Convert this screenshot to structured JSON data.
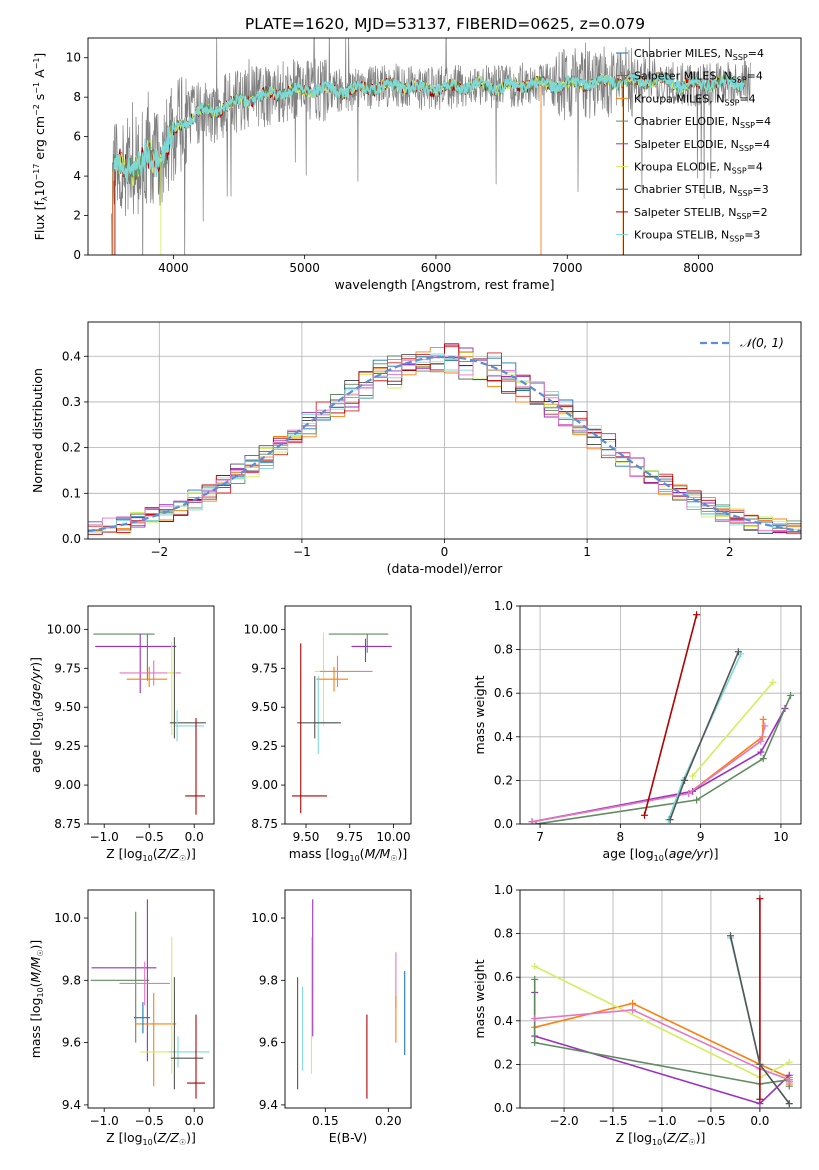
{
  "title": "PLATE=1620, MJD=53137, FIBERID=0625, z=0.079",
  "colors": {
    "chabrier_miles": "#1f77b4",
    "salpeter_miles": "#d62728",
    "kroupa_miles": "#ff7f0e",
    "chabrier_elodie": "#5f8b5f",
    "salpeter_elodie": "#9b30c0",
    "kroupa_elodie": "#d4ee5e",
    "chabrier_stelib": "#555555",
    "salpeter_stelib": "#b30000",
    "kroupa_stelib": "#7fd8d8",
    "data": "#808080",
    "gauss": "#5b8ed6",
    "pink": "#e377c2"
  },
  "chart_data": [
    {
      "id": "spectrum",
      "type": "line",
      "xlabel": "wavelength [Angstrom, rest frame]",
      "ylabel": "Flux [f_λ 10^-17 erg cm^-2 s^-1 A^-1]",
      "xlim": [
        3350,
        8780
      ],
      "ylim": [
        0,
        11
      ],
      "xticks": [
        4000,
        5000,
        6000,
        7000,
        8000
      ],
      "yticks": [
        0,
        2,
        4,
        6,
        8,
        10
      ],
      "grid": false,
      "legend_position": "right",
      "legend": [
        {
          "label": "Chabrier MILES, N",
          "sub": "SSP",
          "suffix": "=4",
          "color_key": "chabrier_miles"
        },
        {
          "label": "Salpeter MILES, N",
          "sub": "SSP",
          "suffix": "=4",
          "color_key": "salpeter_miles"
        },
        {
          "label": "Kroupa MILES, N",
          "sub": "SSP",
          "suffix": "=4",
          "color_key": "kroupa_miles"
        },
        {
          "label": "Chabrier ELODIE, N",
          "sub": "SSP",
          "suffix": "=4",
          "color_key": "chabrier_elodie"
        },
        {
          "label": "Salpeter ELODIE, N",
          "sub": "SSP",
          "suffix": "=4",
          "color_key": "salpeter_elodie"
        },
        {
          "label": "Kroupa ELODIE, N",
          "sub": "SSP",
          "suffix": "=4",
          "color_key": "kroupa_elodie"
        },
        {
          "label": "Chabrier STELIB, N",
          "sub": "SSP",
          "suffix": "=3",
          "color_key": "chabrier_stelib"
        },
        {
          "label": "Salpeter STELIB, N",
          "sub": "SSP",
          "suffix": "=2",
          "color_key": "salpeter_stelib"
        },
        {
          "label": "Kroupa STELIB, N",
          "sub": "SSP",
          "suffix": "=3",
          "color_key": "kroupa_stelib"
        }
      ],
      "continuum": {
        "x": [
          3530,
          3600,
          3700,
          3800,
          3900,
          4000,
          4100,
          4200,
          4300,
          4400,
          4500,
          4700,
          4900,
          5100,
          5300,
          5500,
          5700,
          5900,
          6100,
          6300,
          6500,
          6700,
          6900,
          7100,
          7300,
          7500,
          7700,
          7900,
          8100,
          8300
        ],
        "y": [
          4.2,
          4.6,
          4.3,
          5.1,
          4.8,
          6.2,
          6.8,
          7.3,
          7.2,
          7.6,
          7.8,
          8.1,
          8.3,
          8.4,
          8.3,
          8.5,
          8.6,
          8.4,
          8.5,
          8.6,
          8.5,
          8.7,
          8.6,
          8.7,
          8.8,
          8.8,
          8.9,
          8.6,
          8.7,
          8.8
        ]
      }
    },
    {
      "id": "residuals",
      "type": "histogram",
      "xlabel": "(data-model)/error",
      "ylabel": "Normed distribution",
      "xlim": [
        -2.5,
        2.5
      ],
      "ylim": [
        0,
        0.475
      ],
      "xticks": [
        -2,
        -1,
        0,
        1,
        2
      ],
      "yticks": [
        0.0,
        0.1,
        0.2,
        0.3,
        0.4
      ],
      "grid": true,
      "legend_position": "top-right",
      "legend_label": "𝒩(0, 1)",
      "bin_width": 0.1
    },
    {
      "id": "age_vs_Z",
      "type": "errorbar",
      "xlabel": "Z [log10(Z/Z☉)]",
      "ylabel": "age  [log10(age/yr)]",
      "xlim": [
        -1.18,
        0.22
      ],
      "ylim": [
        8.75,
        10.15
      ],
      "xticks": [
        -1.0,
        -0.5,
        0.0
      ],
      "yticks": [
        8.75,
        9.0,
        9.25,
        9.5,
        9.75,
        10.0
      ],
      "grid": false,
      "points": [
        {
          "x": -0.52,
          "y": 9.97,
          "xerr": [
            0.6,
            0.08
          ],
          "yerr": [
            0.3,
            0.0
          ],
          "c": "chabrier_elodie"
        },
        {
          "x": -0.6,
          "y": 9.89,
          "xerr": [
            0.5,
            0.4
          ],
          "yerr": [
            0.3,
            0.08
          ],
          "c": "salpeter_elodie"
        },
        {
          "x": -0.45,
          "y": 9.72,
          "xerr": [
            0.38,
            0.3
          ],
          "yerr": [
            0.08,
            0.08
          ],
          "c": "pink"
        },
        {
          "x": -0.5,
          "y": 9.68,
          "xerr": [
            0.25,
            0.2
          ],
          "yerr": [
            0.05,
            0.08
          ],
          "c": "kroupa_miles"
        },
        {
          "x": -0.25,
          "y": 9.72,
          "xerr": [
            0.05,
            0.05
          ],
          "yerr": [
            0.4,
            0.2
          ],
          "c": "kroupa_elodie"
        },
        {
          "x": -0.22,
          "y": 9.4,
          "xerr": [
            0.05,
            0.35
          ],
          "yerr": [
            0.1,
            0.55
          ],
          "c": "chabrier_stelib"
        },
        {
          "x": -0.19,
          "y": 9.38,
          "xerr": [
            0.02,
            0.3
          ],
          "yerr": [
            0.1,
            0.1
          ],
          "c": "kroupa_stelib"
        },
        {
          "x": 0.02,
          "y": 8.93,
          "xerr": [
            0.12,
            0.1
          ],
          "yerr": [
            0.12,
            0.5
          ],
          "c": "salpeter_stelib"
        }
      ]
    },
    {
      "id": "age_vs_mass",
      "type": "errorbar",
      "xlabel": "mass [log10(M/M☉)]",
      "ylabel": "",
      "xlim": [
        9.38,
        10.1
      ],
      "ylim": [
        8.75,
        10.15
      ],
      "xticks": [
        9.5,
        9.75,
        10.0
      ],
      "yticks": [
        8.75,
        9.0,
        9.25,
        9.5,
        9.75,
        10.0
      ],
      "grid": false,
      "points": [
        {
          "x": 9.85,
          "y": 9.97,
          "xerr": [
            0.22,
            0.12
          ],
          "yerr": [
            0.12,
            0.0
          ],
          "c": "chabrier_elodie"
        },
        {
          "x": 9.84,
          "y": 9.89,
          "xerr": [
            0.08,
            0.15
          ],
          "yerr": [
            0.1,
            0.05
          ],
          "c": "salpeter_elodie"
        },
        {
          "x": 9.6,
          "y": 9.73,
          "xerr": [
            0.05,
            0.2
          ],
          "yerr": [
            0.35,
            0.25
          ],
          "c": "kroupa_elodie"
        },
        {
          "x": 9.68,
          "y": 9.73,
          "xerr": [
            0.1,
            0.2
          ],
          "yerr": [
            0.1,
            0.1
          ],
          "c": "pink"
        },
        {
          "x": 9.66,
          "y": 9.68,
          "xerr": [
            0.1,
            0.08
          ],
          "yerr": [
            0.08,
            0.08
          ],
          "c": "kroupa_miles"
        },
        {
          "x": 9.57,
          "y": 9.4,
          "xerr": [
            0.03,
            0.1
          ],
          "yerr": [
            0.2,
            0.3
          ],
          "c": "kroupa_stelib"
        },
        {
          "x": 9.55,
          "y": 9.4,
          "xerr": [
            0.1,
            0.15
          ],
          "yerr": [
            0.1,
            0.3
          ],
          "c": "chabrier_stelib"
        },
        {
          "x": 9.47,
          "y": 8.93,
          "xerr": [
            0.05,
            0.15
          ],
          "yerr": [
            0.11,
            0.98
          ],
          "c": "salpeter_stelib"
        }
      ]
    },
    {
      "id": "weight_vs_age",
      "type": "line",
      "xlabel": "age  [log10(age/yr)]",
      "ylabel": "mass weight",
      "xlim": [
        6.75,
        10.25
      ],
      "ylim": [
        0,
        1
      ],
      "xticks": [
        7,
        8,
        9,
        10
      ],
      "yticks": [
        0.0,
        0.2,
        0.4,
        0.6,
        0.8,
        1.0
      ],
      "grid": true,
      "series": [
        {
          "c": "kroupa_miles",
          "x": [
            6.9,
            8.85,
            9.77,
            9.78
          ],
          "y": [
            0.01,
            0.14,
            0.4,
            0.48
          ]
        },
        {
          "c": "salpeter_elodie",
          "x": [
            6.9,
            8.9,
            9.75,
            10.05
          ],
          "y": [
            0.01,
            0.15,
            0.33,
            0.53
          ]
        },
        {
          "c": "chabrier_elodie",
          "x": [
            6.95,
            8.95,
            9.78,
            10.12
          ],
          "y": [
            0.0,
            0.11,
            0.3,
            0.59
          ]
        },
        {
          "c": "kroupa_elodie",
          "x": [
            8.9,
            9.9
          ],
          "y": [
            0.22,
            0.65
          ]
        },
        {
          "c": "pink",
          "x": [
            6.9,
            8.85,
            9.75,
            9.8
          ],
          "y": [
            0.01,
            0.14,
            0.38,
            0.45
          ]
        },
        {
          "c": "salpeter_stelib",
          "x": [
            8.3,
            8.95
          ],
          "y": [
            0.04,
            0.96
          ]
        },
        {
          "c": "kroupa_stelib",
          "x": [
            8.6,
            8.78,
            9.5
          ],
          "y": [
            0.02,
            0.2,
            0.78
          ]
        },
        {
          "c": "chabrier_stelib",
          "x": [
            8.62,
            8.8,
            9.47
          ],
          "y": [
            0.02,
            0.2,
            0.79
          ]
        }
      ]
    },
    {
      "id": "mass_vs_Z",
      "type": "errorbar",
      "xlabel": "Z [log10(Z/Z☉)]",
      "ylabel": "mass [log10(M/M☉)]",
      "xlim": [
        -1.18,
        0.22
      ],
      "ylim": [
        9.39,
        10.09
      ],
      "xticks": [
        -1.0,
        -0.5,
        0.0
      ],
      "yticks": [
        9.4,
        9.6,
        9.8,
        10.0
      ],
      "grid": false,
      "points": [
        {
          "x": -0.52,
          "y": 9.84,
          "xerr": [
            0.62,
            0.1
          ],
          "yerr": [
            0.3,
            0.22
          ],
          "c": "salpeter_elodie"
        },
        {
          "x": -0.65,
          "y": 9.8,
          "xerr": [
            0.5,
            0.15
          ],
          "yerr": [
            0.2,
            0.22
          ],
          "c": "chabrier_elodie"
        },
        {
          "x": -0.55,
          "y": 9.79,
          "xerr": [
            0.28,
            0.28
          ],
          "yerr": [
            0.07,
            0.07
          ],
          "c": "pink"
        },
        {
          "x": -0.45,
          "y": 9.66,
          "xerr": [
            0.2,
            0.25
          ],
          "yerr": [
            0.2,
            0.1
          ],
          "c": "kroupa_miles"
        },
        {
          "x": -0.57,
          "y": 9.68,
          "xerr": [
            0.1,
            0.08
          ],
          "yerr": [
            0.05,
            0.05
          ],
          "c": "chabrier_miles"
        },
        {
          "x": -0.25,
          "y": 9.57,
          "xerr": [
            0.35,
            0.05
          ],
          "yerr": [
            0.07,
            0.37
          ],
          "c": "kroupa_elodie"
        },
        {
          "x": -0.18,
          "y": 9.57,
          "xerr": [
            0.1,
            0.35
          ],
          "yerr": [
            0.05,
            0.05
          ],
          "c": "kroupa_stelib"
        },
        {
          "x": -0.22,
          "y": 9.55,
          "xerr": [
            0.04,
            0.32
          ],
          "yerr": [
            0.1,
            0.26
          ],
          "c": "chabrier_stelib"
        },
        {
          "x": 0.02,
          "y": 9.47,
          "xerr": [
            0.1,
            0.1
          ],
          "yerr": [
            0.05,
            0.22
          ],
          "c": "salpeter_stelib"
        }
      ]
    },
    {
      "id": "mass_vs_ebv",
      "type": "errorbar",
      "xlabel": "E(B-V)",
      "ylabel": "",
      "xlim": [
        0.118,
        0.218
      ],
      "ylim": [
        9.39,
        10.09
      ],
      "xticks": [
        0.15,
        0.2
      ],
      "yticks": [
        9.4,
        9.6,
        9.8,
        10.0
      ],
      "grid": false,
      "points": [
        {
          "x": 0.128,
          "y": 9.63,
          "yerr": [
            0.18,
            0.18
          ],
          "c": "chabrier_stelib"
        },
        {
          "x": 0.132,
          "y": 9.63,
          "yerr": [
            0.12,
            0.15
          ],
          "c": "kroupa_stelib"
        },
        {
          "x": 0.14,
          "y": 9.84,
          "yerr": [
            0.22,
            0.22
          ],
          "c": "salpeter_elodie"
        },
        {
          "x": 0.139,
          "y": 9.72,
          "yerr": [
            0.22,
            0.22
          ],
          "c": "kroupa_elodie"
        },
        {
          "x": 0.183,
          "y": 9.55,
          "yerr": [
            0.13,
            0.14
          ],
          "c": "salpeter_stelib"
        },
        {
          "x": 0.206,
          "y": 9.8,
          "yerr": [
            0.09,
            0.09
          ],
          "c": "pink"
        },
        {
          "x": 0.206,
          "y": 9.66,
          "yerr": [
            0.06,
            0.09
          ],
          "c": "kroupa_miles"
        },
        {
          "x": 0.213,
          "y": 9.68,
          "yerr": [
            0.12,
            0.15
          ],
          "c": "chabrier_miles"
        }
      ]
    },
    {
      "id": "weight_vs_Z",
      "type": "line",
      "xlabel": "Z [log10(Z/Z☉)]",
      "ylabel": "mass weight",
      "xlim": [
        -2.45,
        0.42
      ],
      "ylim": [
        0,
        1
      ],
      "xticks": [
        -2.0,
        -1.5,
        -1.0,
        -0.5,
        0.0
      ],
      "yticks": [
        0.0,
        0.2,
        0.4,
        0.6,
        0.8,
        1.0
      ],
      "grid": true,
      "series": [
        {
          "c": "kroupa_miles",
          "x": [
            -2.3,
            -1.3,
            0.0,
            0.3,
            0.3
          ],
          "y": [
            0.37,
            0.48,
            0.2,
            0.14,
            0.11
          ]
        },
        {
          "c": "salpeter_elodie",
          "x": [
            -2.3,
            -2.3,
            0.0,
            0.3,
            0.3
          ],
          "y": [
            0.53,
            0.33,
            0.02,
            0.15,
            0.12
          ]
        },
        {
          "c": "chabrier_elodie",
          "x": [
            -2.3,
            -2.3,
            0.0,
            0.3,
            0.3
          ],
          "y": [
            0.59,
            0.3,
            0.11,
            0.13,
            0.1
          ]
        },
        {
          "c": "kroupa_elodie",
          "x": [
            -2.3,
            0.0,
            0.3
          ],
          "y": [
            0.65,
            0.14,
            0.21
          ]
        },
        {
          "c": "pink",
          "x": [
            -2.3,
            -1.3,
            0.0,
            0.3,
            0.3
          ],
          "y": [
            0.41,
            0.45,
            0.18,
            0.13,
            0.12
          ]
        },
        {
          "c": "salpeter_stelib",
          "x": [
            0.0,
            0.0
          ],
          "y": [
            0.04,
            0.96
          ]
        },
        {
          "c": "kroupa_stelib",
          "x": [
            -0.3,
            0.0,
            0.3
          ],
          "y": [
            0.78,
            0.2,
            0.02
          ]
        },
        {
          "c": "chabrier_stelib",
          "x": [
            -0.3,
            0.0,
            0.3
          ],
          "y": [
            0.79,
            0.2,
            0.02
          ]
        }
      ]
    }
  ]
}
